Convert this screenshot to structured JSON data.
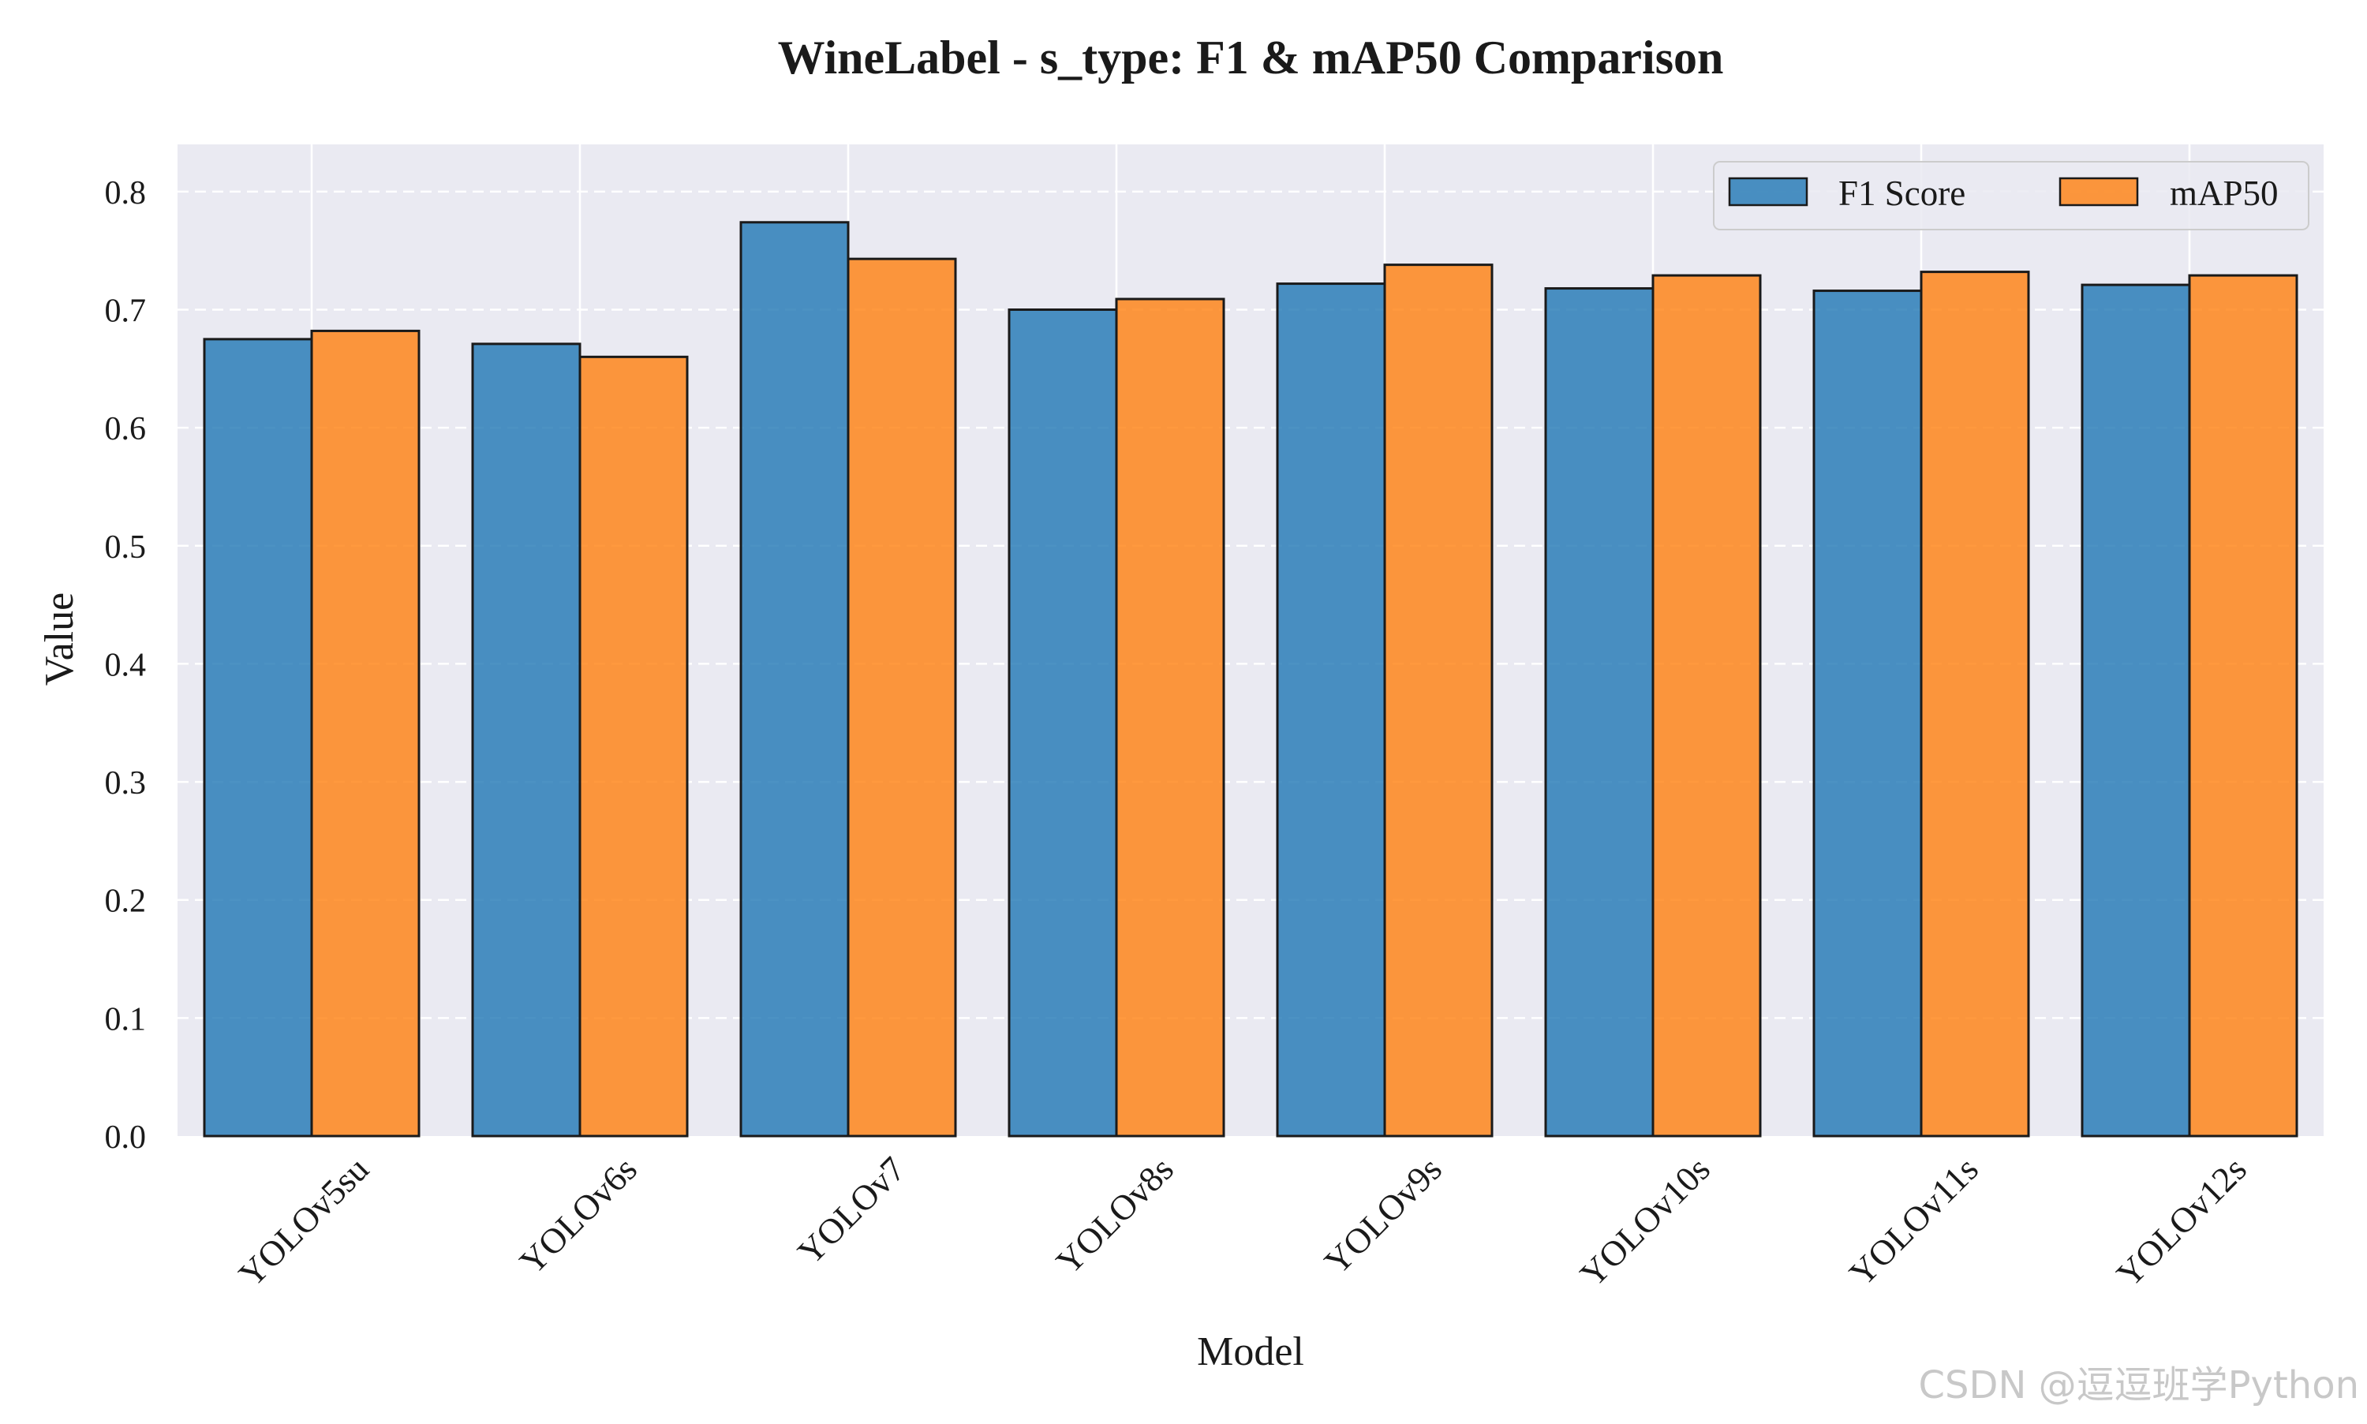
{
  "chart_data": {
    "type": "bar",
    "title": "WineLabel - s_type: F1 & mAP50 Comparison",
    "xlabel": "Model",
    "ylabel": "Value",
    "categories": [
      "YOLOv5su",
      "YOLOv6s",
      "YOLOv7",
      "YOLOv8s",
      "YOLOv9s",
      "YOLOv10s",
      "YOLOv11s",
      "YOLOv12s"
    ],
    "series": [
      {
        "name": "F1 Score",
        "color": "#1f77b4",
        "values": [
          0.675,
          0.671,
          0.774,
          0.7,
          0.722,
          0.718,
          0.716,
          0.721
        ]
      },
      {
        "name": "mAP50",
        "color": "#ff7f0e",
        "values": [
          0.682,
          0.66,
          0.743,
          0.709,
          0.738,
          0.729,
          0.732,
          0.729
        ]
      }
    ],
    "ylim": [
      0,
      0.84
    ],
    "yticks": [
      "0.0",
      "0.1",
      "0.2",
      "0.3",
      "0.4",
      "0.5",
      "0.6",
      "0.7",
      "0.8"
    ],
    "grid": true,
    "legend_position": "top-right",
    "plot_background": "#eaeaf2"
  },
  "watermark": "CSDN @逗逗班学Python"
}
